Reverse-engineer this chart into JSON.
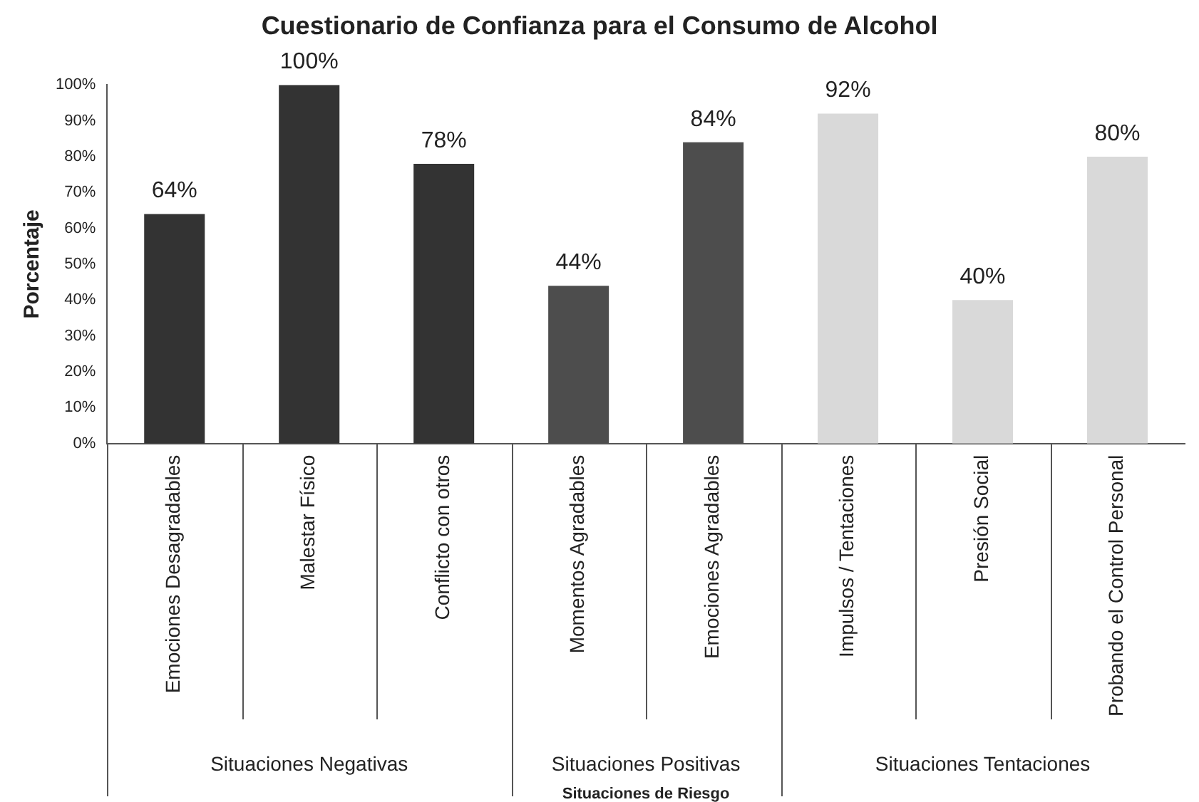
{
  "chart_data": {
    "type": "bar",
    "title": "Cuestionario de Confianza para el Consumo de Alcohol",
    "ylabel": "Porcentaje",
    "xlabel": "Situaciones de Riesgo",
    "categories": [
      "Emociones Desagradables",
      "Malestar Físico",
      "Conflicto con otros",
      "Momentos Agradables",
      "Emociones Agradables",
      "Impulsos / Tentaciones",
      "Presión Social",
      "Probando el Control Personal"
    ],
    "series": [
      {
        "color": "#333333",
        "values": [
          64,
          100,
          78,
          null,
          null,
          null,
          null,
          null
        ]
      },
      {
        "color": "#4d4d4d",
        "values": [
          null,
          null,
          null,
          44,
          84,
          null,
          null,
          null
        ]
      },
      {
        "color": "#d9d9d9",
        "values": [
          null,
          null,
          null,
          null,
          null,
          92,
          40,
          80
        ]
      }
    ],
    "ylim": [
      0,
      100
    ],
    "yticks": [
      {
        "value": 0,
        "label": "0%"
      },
      {
        "value": 10,
        "label": "10%"
      },
      {
        "value": 20,
        "label": "20%"
      },
      {
        "value": 30,
        "label": "30%"
      },
      {
        "value": 40,
        "label": "40%"
      },
      {
        "value": 50,
        "label": "50%"
      },
      {
        "value": 60,
        "label": "60%"
      },
      {
        "value": 70,
        "label": "70%"
      },
      {
        "value": 80,
        "label": "80%"
      },
      {
        "value": 90,
        "label": "90%"
      },
      {
        "value": 100,
        "label": "100%"
      }
    ],
    "value_labels": [
      "64%",
      "100%",
      "78%",
      "44%",
      "84%",
      "92%",
      "40%",
      "80%"
    ],
    "annotations": [
      "Situaciones Negativas",
      "Situaciones Positivas",
      "Situaciones Tentaciones"
    ],
    "grid": false,
    "legend": false
  }
}
